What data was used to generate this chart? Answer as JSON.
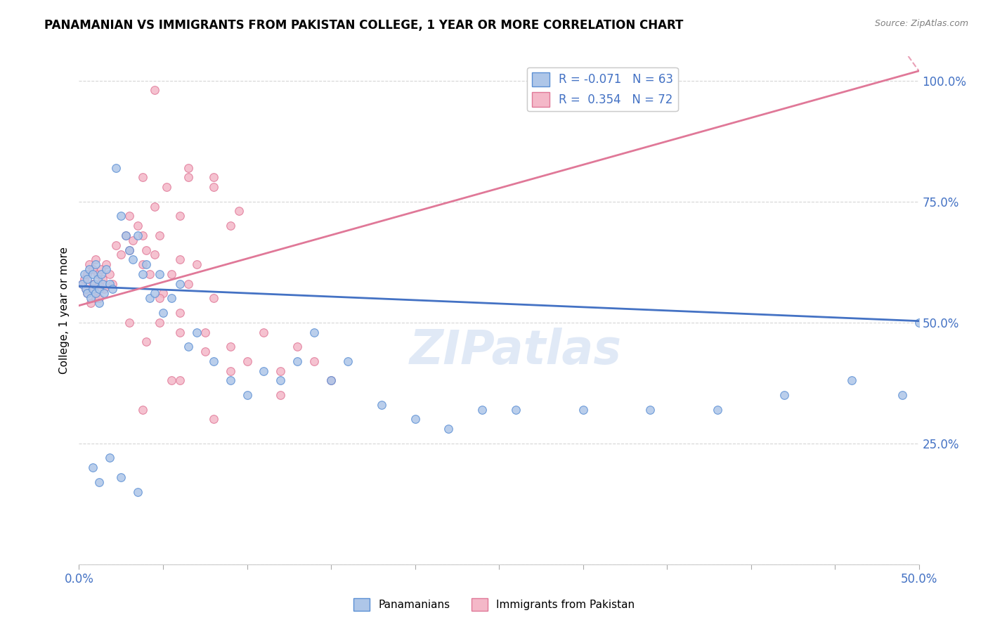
{
  "title": "PANAMANIAN VS IMMIGRANTS FROM PAKISTAN COLLEGE, 1 YEAR OR MORE CORRELATION CHART",
  "source": "Source: ZipAtlas.com",
  "ylabel": "College, 1 year or more",
  "xlim": [
    0.0,
    0.5
  ],
  "ylim": [
    0.0,
    1.05
  ],
  "xtick_positions": [
    0.0,
    0.05,
    0.1,
    0.15,
    0.2,
    0.25,
    0.3,
    0.35,
    0.4,
    0.45,
    0.5
  ],
  "xtick_labels": [
    "0.0%",
    "",
    "",
    "",
    "",
    "",
    "",
    "",
    "",
    "",
    "50.0%"
  ],
  "ytick_positions": [
    0.0,
    0.25,
    0.5,
    0.75,
    1.0
  ],
  "ytick_labels": [
    "",
    "25.0%",
    "50.0%",
    "75.0%",
    "100.0%"
  ],
  "blue_R": -0.071,
  "blue_N": 63,
  "pink_R": 0.354,
  "pink_N": 72,
  "blue_color": "#aec6e8",
  "pink_color": "#f4b8c8",
  "blue_edge_color": "#5b8fd4",
  "pink_edge_color": "#e07898",
  "blue_line_color": "#4472c4",
  "pink_line_color": "#e07898",
  "legend_R_color": "#4472c4",
  "watermark": "ZIPatlas",
  "blue_line_y0": 0.575,
  "blue_line_y1": 0.503,
  "pink_line_y0": 0.535,
  "pink_line_y1": 1.02,
  "blue_x": [
    0.002,
    0.003,
    0.004,
    0.005,
    0.005,
    0.006,
    0.007,
    0.008,
    0.008,
    0.009,
    0.01,
    0.01,
    0.011,
    0.012,
    0.012,
    0.013,
    0.014,
    0.015,
    0.016,
    0.018,
    0.02,
    0.022,
    0.025,
    0.028,
    0.03,
    0.032,
    0.035,
    0.038,
    0.04,
    0.042,
    0.045,
    0.048,
    0.05,
    0.055,
    0.06,
    0.065,
    0.07,
    0.08,
    0.09,
    0.1,
    0.11,
    0.12,
    0.13,
    0.14,
    0.15,
    0.16,
    0.18,
    0.2,
    0.22,
    0.24,
    0.26,
    0.3,
    0.34,
    0.38,
    0.42,
    0.46,
    0.49,
    0.5,
    0.008,
    0.012,
    0.018,
    0.025,
    0.035
  ],
  "blue_y": [
    0.58,
    0.6,
    0.57,
    0.56,
    0.59,
    0.61,
    0.55,
    0.57,
    0.6,
    0.58,
    0.56,
    0.62,
    0.59,
    0.57,
    0.54,
    0.6,
    0.58,
    0.56,
    0.61,
    0.58,
    0.57,
    0.82,
    0.72,
    0.68,
    0.65,
    0.63,
    0.68,
    0.6,
    0.62,
    0.55,
    0.56,
    0.6,
    0.52,
    0.55,
    0.58,
    0.45,
    0.48,
    0.42,
    0.38,
    0.35,
    0.4,
    0.38,
    0.42,
    0.48,
    0.38,
    0.42,
    0.33,
    0.3,
    0.28,
    0.32,
    0.32,
    0.32,
    0.32,
    0.32,
    0.35,
    0.38,
    0.35,
    0.5,
    0.2,
    0.17,
    0.22,
    0.18,
    0.15
  ],
  "pink_x": [
    0.002,
    0.003,
    0.004,
    0.005,
    0.005,
    0.006,
    0.007,
    0.008,
    0.008,
    0.009,
    0.01,
    0.01,
    0.011,
    0.012,
    0.012,
    0.013,
    0.014,
    0.015,
    0.016,
    0.018,
    0.02,
    0.022,
    0.025,
    0.028,
    0.03,
    0.032,
    0.035,
    0.038,
    0.04,
    0.042,
    0.045,
    0.048,
    0.05,
    0.055,
    0.06,
    0.065,
    0.07,
    0.08,
    0.09,
    0.1,
    0.11,
    0.12,
    0.13,
    0.14,
    0.15,
    0.03,
    0.038,
    0.045,
    0.06,
    0.08,
    0.095,
    0.03,
    0.04,
    0.048,
    0.06,
    0.075,
    0.09,
    0.038,
    0.052,
    0.065,
    0.08,
    0.045,
    0.065,
    0.09,
    0.048,
    0.06,
    0.075,
    0.055,
    0.12,
    0.038,
    0.06,
    0.08
  ],
  "pink_y": [
    0.58,
    0.59,
    0.57,
    0.56,
    0.6,
    0.62,
    0.54,
    0.58,
    0.61,
    0.57,
    0.55,
    0.63,
    0.6,
    0.58,
    0.55,
    0.61,
    0.59,
    0.57,
    0.62,
    0.6,
    0.58,
    0.66,
    0.64,
    0.68,
    0.65,
    0.67,
    0.7,
    0.62,
    0.65,
    0.6,
    0.64,
    0.68,
    0.56,
    0.6,
    0.63,
    0.58,
    0.62,
    0.55,
    0.45,
    0.42,
    0.48,
    0.4,
    0.45,
    0.42,
    0.38,
    0.72,
    0.68,
    0.74,
    0.72,
    0.78,
    0.73,
    0.5,
    0.46,
    0.5,
    0.48,
    0.44,
    0.4,
    0.8,
    0.78,
    0.82,
    0.8,
    0.98,
    0.8,
    0.7,
    0.55,
    0.52,
    0.48,
    0.38,
    0.35,
    0.32,
    0.38,
    0.3
  ]
}
